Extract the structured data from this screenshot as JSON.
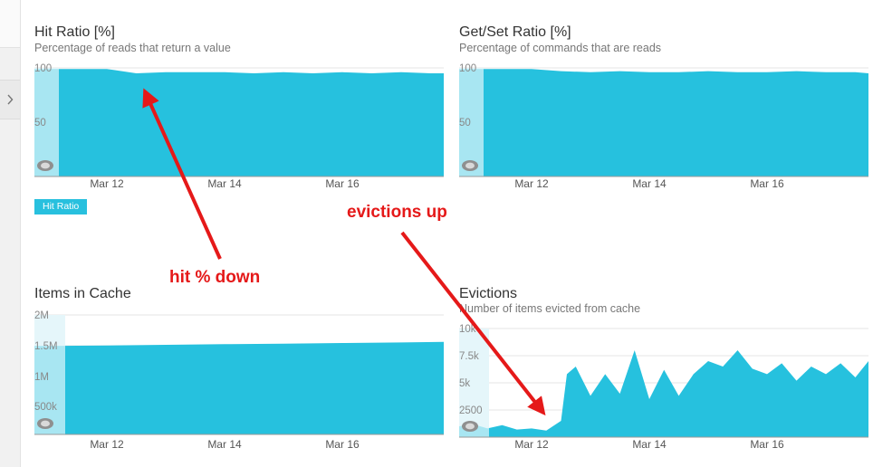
{
  "colors": {
    "series": "#26c1de",
    "highlight": "#bfe9f3",
    "arrow": "#e51919",
    "grid": "#e6e6e6"
  },
  "annotations": {
    "hit_down": "hit % down",
    "evictions_up": "evictions up"
  },
  "chart_data": [
    {
      "type": "area",
      "title": "Hit Ratio [%]",
      "subtitle": "Percentage of reads that return a value",
      "legend": [
        "Hit Ratio"
      ],
      "yticks": [
        "100",
        "50"
      ],
      "ylim": [
        0,
        100
      ],
      "xticks": [
        "Mar 12",
        "Mar 14",
        "Mar 16"
      ],
      "x": [
        "Mar 10",
        "Mar 10.5",
        "Mar 11",
        "Mar 11.5",
        "Mar 12",
        "Mar 12.5",
        "Mar 13",
        "Mar 13.5",
        "Mar 14",
        "Mar 14.5",
        "Mar 15",
        "Mar 15.5",
        "Mar 16",
        "Mar 16.5",
        "Mar 17",
        "Mar 17.5",
        "Mar 18"
      ],
      "series": [
        {
          "values": [
            99,
            99,
            99,
            99,
            99,
            95,
            96,
            96,
            96,
            95,
            96,
            95,
            96,
            95,
            96,
            95,
            95
          ]
        }
      ]
    },
    {
      "type": "area",
      "title": "Get/Set Ratio [%]",
      "subtitle": "Percentage of commands that are reads",
      "yticks": [
        "100",
        "50"
      ],
      "ylim": [
        0,
        100
      ],
      "xticks": [
        "Mar 12",
        "Mar 14",
        "Mar 16"
      ],
      "x": [
        "Mar 10",
        "Mar 10.5",
        "Mar 11",
        "Mar 11.5",
        "Mar 12",
        "Mar 12.5",
        "Mar 13",
        "Mar 13.5",
        "Mar 14",
        "Mar 14.5",
        "Mar 15",
        "Mar 15.5",
        "Mar 16",
        "Mar 16.5",
        "Mar 17",
        "Mar 17.5",
        "Mar 18"
      ],
      "series": [
        {
          "values": [
            99,
            99,
            99,
            99,
            99,
            97,
            96,
            97,
            96,
            96,
            97,
            96,
            96,
            97,
            96,
            96,
            95
          ]
        }
      ]
    },
    {
      "type": "area",
      "title": "Items in Cache",
      "yticks": [
        "2M",
        "1.5M",
        "1M",
        "500k"
      ],
      "ylim": [
        0,
        2000000
      ],
      "xticks": [
        "Mar 12",
        "Mar 14",
        "Mar 16"
      ],
      "x": [
        "Mar 10.5",
        "Mar 11",
        "Mar 12",
        "Mar 13",
        "Mar 14",
        "Mar 15",
        "Mar 16",
        "Mar 17",
        "Mar 18"
      ],
      "series": [
        {
          "values": [
            1480000,
            1480000,
            1490000,
            1500000,
            1510000,
            1520000,
            1530000,
            1540000,
            1550000
          ]
        }
      ]
    },
    {
      "type": "area",
      "title": "Evictions",
      "subtitle": "Number of items evicted from cache",
      "yticks": [
        "10k",
        "7.5k",
        "5k",
        "2500"
      ],
      "ylim": [
        0,
        10000
      ],
      "xticks": [
        "Mar 12",
        "Mar 14",
        "Mar 16"
      ],
      "x": [
        "Mar 10",
        "Mar 10.25",
        "Mar 10.5",
        "Mar 10.75",
        "Mar 11",
        "Mar 11.25",
        "Mar 11.5",
        "Mar 11.75",
        "Mar 12",
        "Mar 12.25",
        "Mar 12.5",
        "Mar 12.6",
        "Mar 12.75",
        "Mar 13",
        "Mar 13.25",
        "Mar 13.5",
        "Mar 13.75",
        "Mar 14",
        "Mar 14.25",
        "Mar 14.5",
        "Mar 14.75",
        "Mar 15",
        "Mar 15.25",
        "Mar 15.5",
        "Mar 15.75",
        "Mar 16",
        "Mar 16.25",
        "Mar 16.5",
        "Mar 16.75",
        "Mar 17",
        "Mar 17.25",
        "Mar 17.5",
        "Mar 17.75",
        "Mar 18"
      ],
      "series": [
        {
          "values": [
            1000,
            1300,
            2600,
            1000,
            1200,
            800,
            1100,
            700,
            800,
            600,
            1500,
            5800,
            6500,
            3800,
            5800,
            4000,
            8000,
            3500,
            6200,
            3800,
            5800,
            7000,
            6500,
            8000,
            6300,
            5800,
            6800,
            5200,
            6500,
            5800,
            6800,
            5500,
            7000,
            6800
          ]
        }
      ]
    }
  ]
}
